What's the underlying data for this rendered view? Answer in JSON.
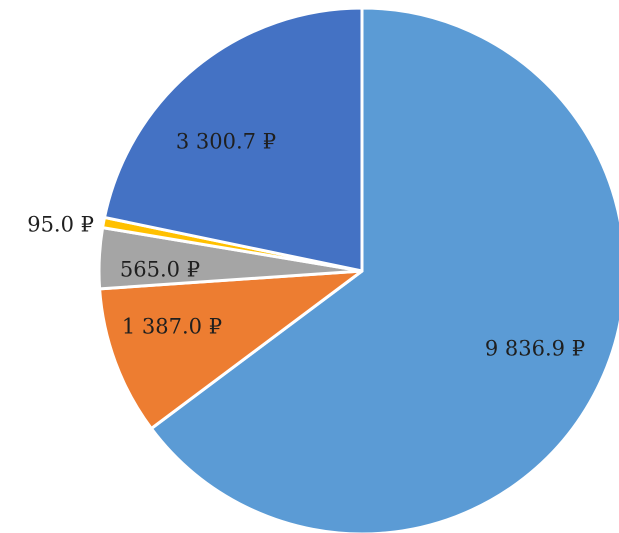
{
  "chart_data": {
    "type": "pie",
    "categories": [
      "",
      "",
      "",
      "",
      ""
    ],
    "values": [
      9836.9,
      1387.0,
      565.0,
      95.0,
      3300.7
    ],
    "labels": [
      "9 836.9 ₽",
      "1 387.0 ₽",
      "565.0 ₽",
      "95.0 ₽",
      "3 300.7 ₽"
    ],
    "colors": [
      "#5b9bd5",
      "#ed7d31",
      "#a5a5a5",
      "#ffc000",
      "#4472c4"
    ],
    "title": "",
    "legend": "none",
    "start_angle": "12 o'clock",
    "direction": "clockwise"
  }
}
